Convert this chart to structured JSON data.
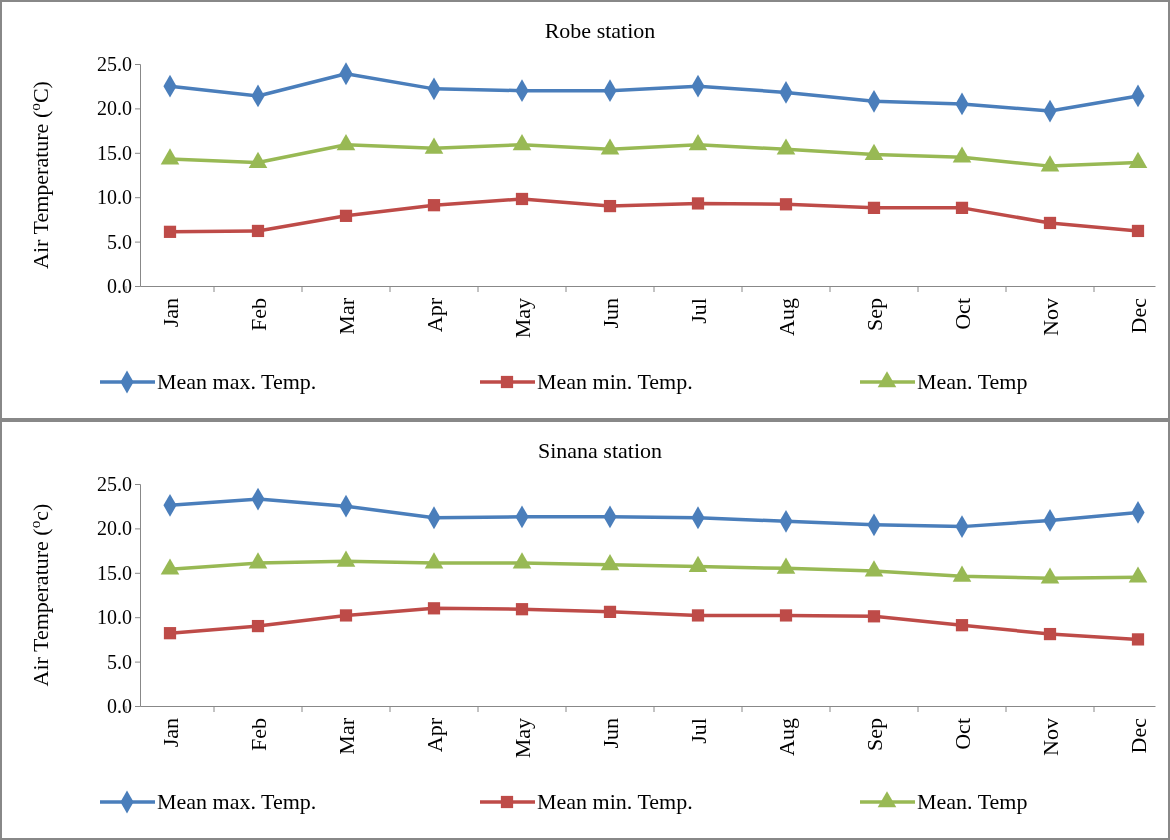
{
  "chart_data": [
    {
      "type": "line",
      "title": "Robe station",
      "ylabel": "Air Temperature ($^{o}$C)",
      "categories": [
        "Jan",
        "Feb",
        "Mar",
        "Apr",
        "May",
        "Jun",
        "Jul",
        "Aug",
        "Sep",
        "Oct",
        "Nov",
        "Dec"
      ],
      "ylim": [
        0,
        25
      ],
      "yticks": [
        {
          "value": 0,
          "label": "0.0"
        },
        {
          "value": 5,
          "label": "5.0"
        },
        {
          "value": 10,
          "label": "10.0"
        },
        {
          "value": 15,
          "label": "15.0"
        },
        {
          "value": 20,
          "label": "20.0"
        },
        {
          "value": 25,
          "label": "25.0"
        }
      ],
      "legend": "bottom",
      "line_style": "solid",
      "series": [
        {
          "name": "Mean max. Temp.",
          "color": "#4a7ebb",
          "marker": "diamond",
          "values": [
            22.5,
            21.4,
            23.9,
            22.2,
            22.0,
            22.0,
            22.5,
            21.8,
            20.8,
            20.5,
            19.7,
            21.4
          ]
        },
        {
          "name": "Mean min. Temp.",
          "color": "#be4b48",
          "marker": "square",
          "values": [
            6.1,
            6.2,
            7.9,
            9.1,
            9.8,
            9.0,
            9.3,
            9.2,
            8.8,
            8.8,
            7.1,
            6.2
          ]
        },
        {
          "name": "Mean. Temp",
          "color": "#98b954",
          "marker": "triangle",
          "values": [
            14.3,
            13.9,
            15.9,
            15.5,
            15.9,
            15.4,
            15.9,
            15.4,
            14.8,
            14.5,
            13.5,
            13.9
          ]
        }
      ]
    },
    {
      "type": "line",
      "title": "Sinana station",
      "ylabel": "Air Temperature ($^{o}$c)",
      "categories": [
        "Jan",
        "Feb",
        "Mar",
        "Apr",
        "May",
        "Jun",
        "Jul",
        "Aug",
        "Sep",
        "Oct",
        "Nov",
        "Dec"
      ],
      "ylim": [
        0,
        25
      ],
      "yticks": [
        {
          "value": 0,
          "label": "0.0"
        },
        {
          "value": 5,
          "label": "5.0"
        },
        {
          "value": 10,
          "label": "10.0"
        },
        {
          "value": 15,
          "label": "15.0"
        },
        {
          "value": 20,
          "label": "20.0"
        },
        {
          "value": 25,
          "label": "25.0"
        }
      ],
      "legend": "bottom",
      "line_style": "solid",
      "series": [
        {
          "name": "Mean max. Temp.",
          "color": "#4a7ebb",
          "marker": "diamond",
          "values": [
            22.6,
            23.3,
            22.5,
            21.2,
            21.3,
            21.3,
            21.2,
            20.8,
            20.4,
            20.2,
            20.9,
            21.8
          ]
        },
        {
          "name": "Mean min. Temp.",
          "color": "#be4b48",
          "marker": "square",
          "values": [
            8.2,
            9.0,
            10.2,
            11.0,
            10.9,
            10.6,
            10.2,
            10.2,
            10.1,
            9.1,
            8.1,
            7.5
          ]
        },
        {
          "name": "Mean. Temp",
          "color": "#98b954",
          "marker": "triangle",
          "values": [
            15.4,
            16.1,
            16.3,
            16.1,
            16.1,
            15.9,
            15.7,
            15.5,
            15.2,
            14.6,
            14.4,
            14.5
          ]
        }
      ]
    }
  ]
}
